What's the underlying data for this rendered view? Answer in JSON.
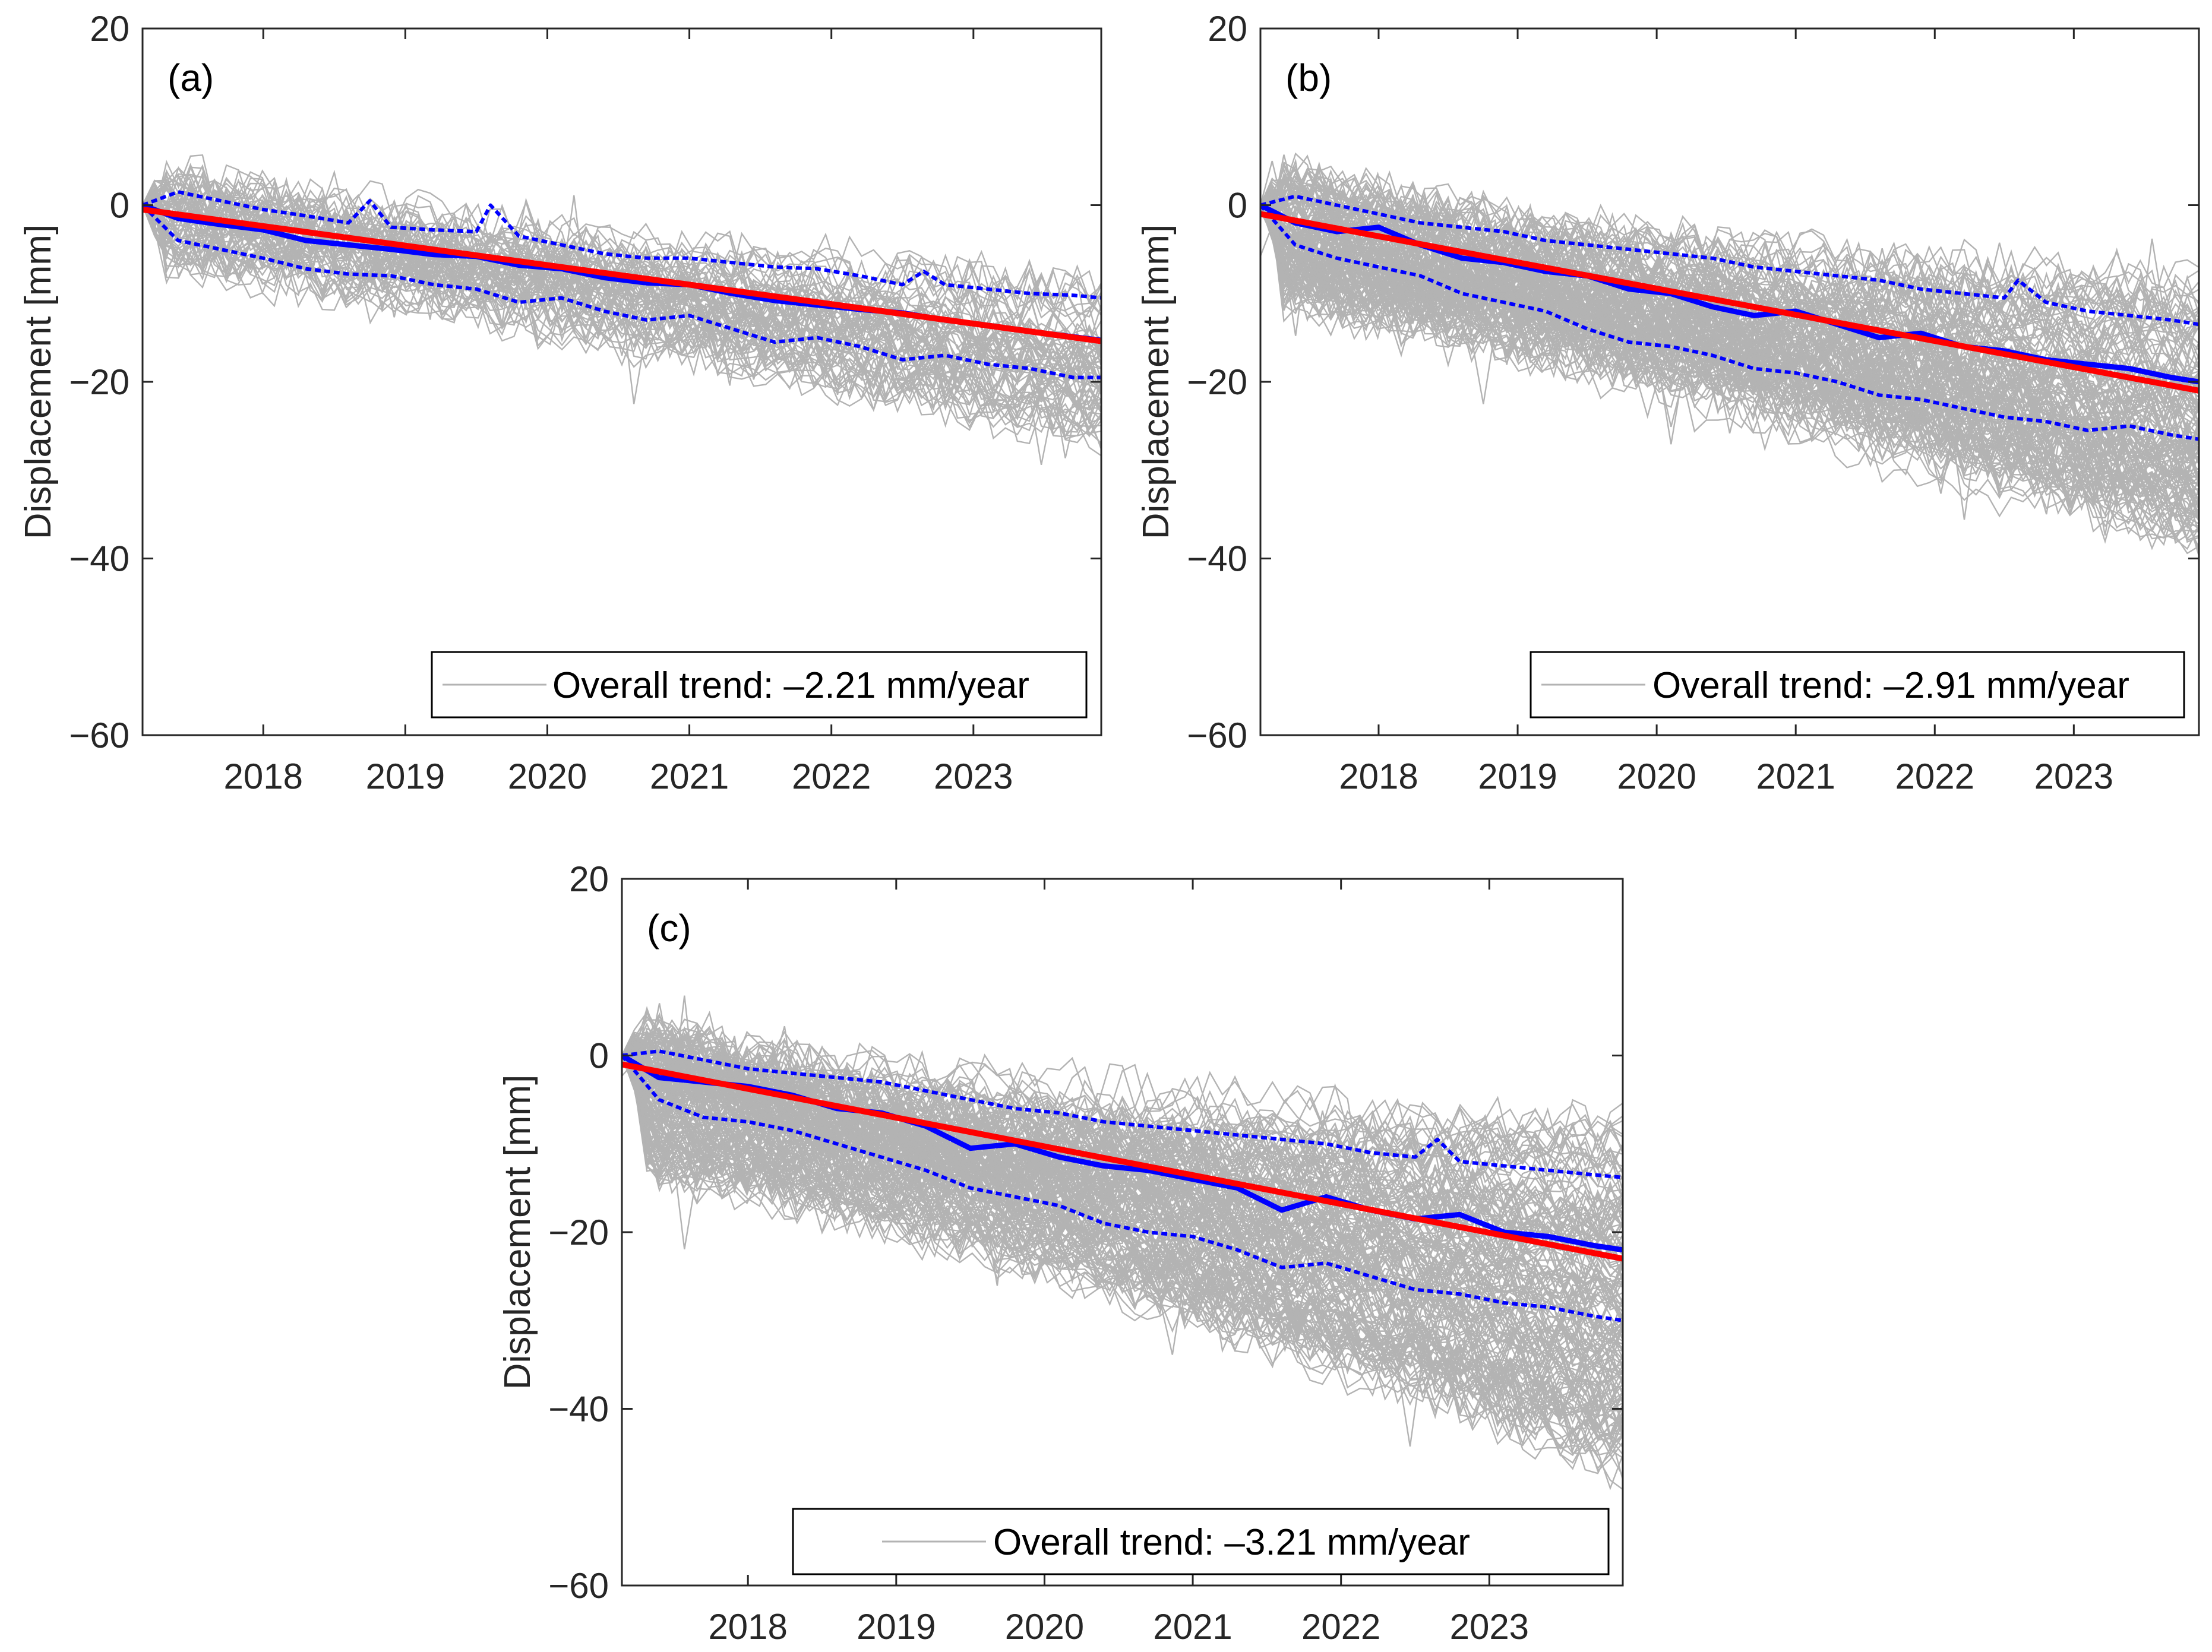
{
  "chart_data": [
    {
      "type": "line",
      "panel_label": "(a)",
      "ylabel": "Displacement [mm]",
      "xlabel": "",
      "xlim": [
        2017.15,
        2023.9
      ],
      "ylim": [
        -60,
        20
      ],
      "yticks": [
        20,
        0,
        -20,
        -40,
        -60
      ],
      "xticks": [
        2018,
        2019,
        2020,
        2021,
        2022,
        2023
      ],
      "xtick_labels": [
        "2018",
        "2019",
        "2020",
        "2021",
        "2022",
        "2023"
      ],
      "ytick_labels": [
        "20",
        "0",
        "−20",
        "−40",
        "−60"
      ],
      "legend": {
        "label": "Overall trend: –2.21 mm/year",
        "position": "bottom-right"
      },
      "series": [
        {
          "name": "mean",
          "style": "solid-blue",
          "x": [
            2017.15,
            2017.4,
            2017.7,
            2018.0,
            2018.3,
            2018.6,
            2018.9,
            2019.2,
            2019.5,
            2019.8,
            2020.1,
            2020.4,
            2020.7,
            2021.0,
            2021.3,
            2021.6,
            2021.9,
            2022.2,
            2022.5,
            2022.8,
            2023.1,
            2023.4,
            2023.7,
            2023.9
          ],
          "values": [
            0,
            -1.5,
            -2.2,
            -2.8,
            -4.0,
            -4.5,
            -5.0,
            -5.6,
            -5.8,
            -6.8,
            -7.2,
            -8.2,
            -8.8,
            -9.0,
            -10.0,
            -10.8,
            -11.3,
            -11.8,
            -12.2,
            -13.0,
            -13.6,
            -14.3,
            -14.9,
            -15.3
          ]
        },
        {
          "name": "upper",
          "style": "dotted-blue",
          "x": [
            2017.15,
            2017.4,
            2017.7,
            2018.0,
            2018.3,
            2018.6,
            2018.75,
            2018.9,
            2019.2,
            2019.5,
            2019.6,
            2019.8,
            2020.1,
            2020.4,
            2020.7,
            2021.0,
            2021.3,
            2021.6,
            2021.9,
            2022.2,
            2022.5,
            2022.65,
            2022.8,
            2023.1,
            2023.4,
            2023.7,
            2023.9
          ],
          "values": [
            0,
            1.5,
            0.5,
            -0.5,
            -1.2,
            -2.0,
            0.5,
            -2.5,
            -2.8,
            -3.0,
            0.0,
            -3.5,
            -4.5,
            -5.5,
            -6.0,
            -6.0,
            -6.5,
            -7.0,
            -7.2,
            -8.0,
            -9.0,
            -7.5,
            -9.0,
            -9.5,
            -10.0,
            -10.2,
            -10.5
          ]
        },
        {
          "name": "lower",
          "style": "dotted-blue",
          "x": [
            2017.15,
            2017.4,
            2017.7,
            2018.0,
            2018.3,
            2018.6,
            2018.9,
            2019.2,
            2019.5,
            2019.8,
            2020.1,
            2020.4,
            2020.7,
            2021.0,
            2021.3,
            2021.6,
            2021.9,
            2022.2,
            2022.5,
            2022.8,
            2023.1,
            2023.4,
            2023.7,
            2023.9
          ],
          "values": [
            0,
            -4.0,
            -5.0,
            -6.0,
            -7.2,
            -7.8,
            -8.0,
            -9.0,
            -9.5,
            -11.0,
            -10.5,
            -12.0,
            -13.0,
            -12.5,
            -14.0,
            -15.5,
            -15.0,
            -16.0,
            -17.5,
            -17.0,
            -18.0,
            -18.5,
            -19.5,
            -19.5
          ]
        },
        {
          "name": "trend",
          "style": "solid-red",
          "x": [
            2017.15,
            2023.9
          ],
          "values": [
            -0.5,
            -15.4
          ]
        }
      ],
      "background_spread": {
        "count": 70,
        "upper_end": -9,
        "lower_end": -26,
        "upper_start": 4,
        "lower_start": -6
      }
    },
    {
      "type": "line",
      "panel_label": "(b)",
      "ylabel": "Displacement [mm]",
      "xlabel": "",
      "xlim": [
        2017.15,
        2023.9
      ],
      "ylim": [
        -60,
        20
      ],
      "yticks": [
        20,
        0,
        -20,
        -40,
        -60
      ],
      "xticks": [
        2018,
        2019,
        2020,
        2021,
        2022,
        2023
      ],
      "xtick_labels": [
        "2018",
        "2019",
        "2020",
        "2021",
        "2022",
        "2023"
      ],
      "ytick_labels": [
        "20",
        "0",
        "−20",
        "−40",
        "−60"
      ],
      "legend": {
        "label": "Overall trend: –2.91 mm/year",
        "position": "bottom-right"
      },
      "series": [
        {
          "name": "mean",
          "style": "solid-blue",
          "x": [
            2017.15,
            2017.4,
            2017.7,
            2018.0,
            2018.3,
            2018.6,
            2018.9,
            2019.2,
            2019.5,
            2019.8,
            2020.1,
            2020.4,
            2020.7,
            2021.0,
            2021.3,
            2021.6,
            2021.9,
            2022.2,
            2022.5,
            2022.8,
            2023.1,
            2023.4,
            2023.7,
            2023.9
          ],
          "values": [
            0,
            -2.0,
            -3.0,
            -2.5,
            -4.5,
            -6.0,
            -6.5,
            -7.5,
            -8.0,
            -9.5,
            -10.0,
            -11.5,
            -12.5,
            -12.0,
            -13.5,
            -15.0,
            -14.5,
            -16.0,
            -16.5,
            -17.5,
            -18.0,
            -18.5,
            -19.5,
            -20.0
          ]
        },
        {
          "name": "upper",
          "style": "dotted-blue",
          "x": [
            2017.15,
            2017.4,
            2017.7,
            2018.0,
            2018.3,
            2018.6,
            2018.9,
            2019.2,
            2019.5,
            2019.8,
            2020.1,
            2020.4,
            2020.7,
            2021.0,
            2021.3,
            2021.6,
            2021.9,
            2022.2,
            2022.5,
            2022.6,
            2022.8,
            2023.1,
            2023.4,
            2023.7,
            2023.9
          ],
          "values": [
            0,
            1.0,
            0.0,
            -1.0,
            -2.0,
            -2.5,
            -3.0,
            -4.0,
            -4.5,
            -5.0,
            -5.5,
            -6.0,
            -7.0,
            -7.5,
            -8.0,
            -8.5,
            -9.5,
            -10.0,
            -10.5,
            -8.5,
            -11.0,
            -12.0,
            -12.5,
            -13.0,
            -13.5
          ]
        },
        {
          "name": "lower",
          "style": "dotted-blue",
          "x": [
            2017.15,
            2017.4,
            2017.7,
            2018.0,
            2018.3,
            2018.6,
            2018.9,
            2019.2,
            2019.5,
            2019.8,
            2020.1,
            2020.4,
            2020.7,
            2021.0,
            2021.3,
            2021.6,
            2021.9,
            2022.2,
            2022.5,
            2022.8,
            2023.1,
            2023.4,
            2023.7,
            2023.9
          ],
          "values": [
            0,
            -4.5,
            -6.0,
            -7.0,
            -8.0,
            -10.0,
            -11.0,
            -12.0,
            -14.0,
            -15.5,
            -16.0,
            -17.0,
            -18.5,
            -19.0,
            -20.0,
            -21.5,
            -22.0,
            -23.0,
            -24.0,
            -24.5,
            -25.5,
            -25.0,
            -26.0,
            -26.5
          ]
        },
        {
          "name": "trend",
          "style": "solid-red",
          "x": [
            2017.15,
            2023.9
          ],
          "values": [
            -1.0,
            -21.0
          ]
        }
      ],
      "background_spread": {
        "count": 150,
        "upper_end": -8,
        "lower_end": -38,
        "upper_start": 4,
        "lower_start": -10
      }
    },
    {
      "type": "line",
      "panel_label": "(c)",
      "ylabel": "Displacement [mm]",
      "xlabel": "",
      "xlim": [
        2017.15,
        2023.9
      ],
      "ylim": [
        -60,
        20
      ],
      "yticks": [
        20,
        0,
        -20,
        -40,
        -60
      ],
      "xticks": [
        2018,
        2019,
        2020,
        2021,
        2022,
        2023
      ],
      "xtick_labels": [
        "2018",
        "2019",
        "2020",
        "2021",
        "2022",
        "2023"
      ],
      "ytick_labels": [
        "20",
        "0",
        "−20",
        "−40",
        "−60"
      ],
      "legend": {
        "label": "Overall trend: –3.21 mm/year",
        "position": "bottom"
      },
      "series": [
        {
          "name": "mean",
          "style": "solid-blue",
          "x": [
            2017.15,
            2017.4,
            2017.7,
            2018.0,
            2018.3,
            2018.6,
            2018.9,
            2019.2,
            2019.5,
            2019.8,
            2020.1,
            2020.4,
            2020.7,
            2021.0,
            2021.3,
            2021.6,
            2021.9,
            2022.2,
            2022.5,
            2022.8,
            2023.1,
            2023.4,
            2023.7,
            2023.9
          ],
          "values": [
            0,
            -2.5,
            -3.0,
            -3.5,
            -4.5,
            -6.0,
            -6.5,
            -8.0,
            -10.5,
            -10.0,
            -11.5,
            -12.5,
            -13.0,
            -14.0,
            -15.0,
            -17.5,
            -16.0,
            -17.5,
            -18.5,
            -18.0,
            -20.0,
            -20.5,
            -21.5,
            -22.0
          ]
        },
        {
          "name": "upper",
          "style": "dotted-blue",
          "x": [
            2017.15,
            2017.4,
            2017.7,
            2018.0,
            2018.3,
            2018.6,
            2018.9,
            2019.2,
            2019.5,
            2019.8,
            2020.1,
            2020.4,
            2020.7,
            2021.0,
            2021.3,
            2021.6,
            2021.9,
            2022.2,
            2022.5,
            2022.65,
            2022.8,
            2023.1,
            2023.4,
            2023.7,
            2023.9
          ],
          "values": [
            0,
            0.5,
            -0.5,
            -1.5,
            -2.0,
            -2.5,
            -3.0,
            -4.0,
            -5.0,
            -6.0,
            -6.5,
            -7.5,
            -8.0,
            -8.5,
            -9.0,
            -9.5,
            -10.0,
            -11.0,
            -11.5,
            -9.5,
            -12.0,
            -12.5,
            -13.0,
            -13.5,
            -13.8
          ]
        },
        {
          "name": "lower",
          "style": "dotted-blue",
          "x": [
            2017.15,
            2017.4,
            2017.7,
            2018.0,
            2018.3,
            2018.6,
            2018.9,
            2019.2,
            2019.5,
            2019.8,
            2020.1,
            2020.4,
            2020.7,
            2021.0,
            2021.3,
            2021.6,
            2021.9,
            2022.2,
            2022.5,
            2022.8,
            2023.1,
            2023.4,
            2023.7,
            2023.9
          ],
          "values": [
            0,
            -5.0,
            -7.0,
            -7.5,
            -8.5,
            -10.0,
            -11.5,
            -13.0,
            -15.0,
            -16.0,
            -17.0,
            -19.0,
            -20.0,
            -20.5,
            -22.0,
            -24.0,
            -23.5,
            -25.0,
            -26.5,
            -27.0,
            -28.0,
            -28.5,
            -29.5,
            -30.0
          ]
        },
        {
          "name": "trend",
          "style": "solid-red",
          "x": [
            2017.15,
            2023.9
          ],
          "values": [
            -1.0,
            -23.0
          ]
        }
      ],
      "background_spread": {
        "count": 170,
        "upper_end": -8,
        "lower_end": -47,
        "upper_start": 4,
        "lower_start": -12
      }
    }
  ]
}
